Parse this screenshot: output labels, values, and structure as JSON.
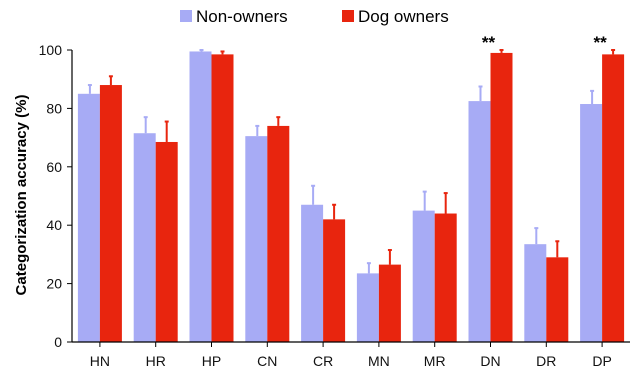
{
  "chart_data": {
    "type": "bar",
    "title": "",
    "xlabel": "",
    "ylabel": "Categorization accuracy (%)",
    "ylim": [
      0,
      100
    ],
    "yticks": [
      0,
      20,
      40,
      60,
      80,
      100
    ],
    "categories": [
      "HN",
      "HR",
      "HP",
      "CN",
      "CR",
      "MN",
      "MR",
      "DN",
      "DR",
      "DP"
    ],
    "series": [
      {
        "name": "Non-owners",
        "color": "#a7abf5",
        "values": [
          85,
          71.5,
          99.5,
          70.5,
          47,
          23.5,
          45,
          82.5,
          33.5,
          81.5
        ],
        "errors": [
          3,
          5.5,
          0.5,
          3.5,
          6.5,
          3.5,
          6.5,
          5,
          5.5,
          4.5
        ]
      },
      {
        "name": "Dog owners",
        "color": "#e8250e",
        "values": [
          88,
          68.5,
          98.5,
          74,
          42,
          26.5,
          44,
          99,
          29,
          98.5
        ],
        "errors": [
          3,
          7,
          1,
          3,
          5,
          5,
          7,
          1,
          5.5,
          1.5
        ]
      }
    ],
    "annotations": [
      {
        "category": "DN",
        "text": "**"
      },
      {
        "category": "DP",
        "text": "**"
      }
    ],
    "legend": {
      "position": "top-center"
    },
    "grid": false
  }
}
